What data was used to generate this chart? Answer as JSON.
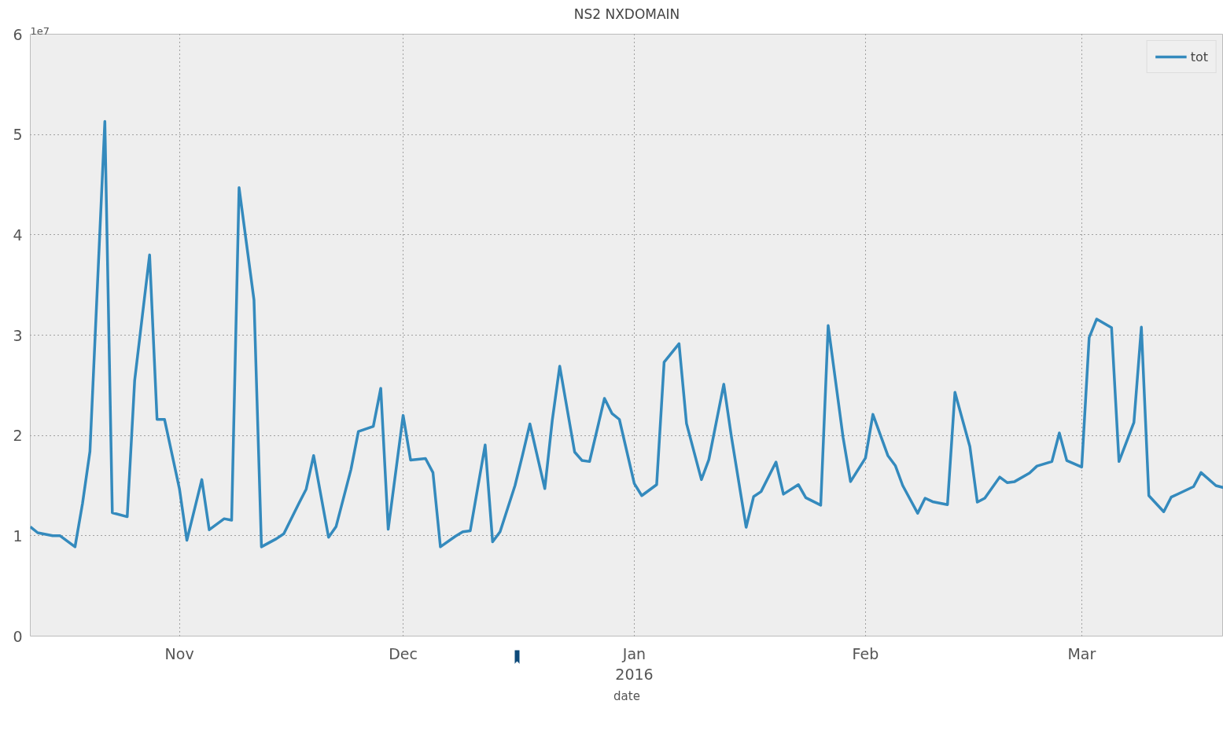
{
  "chart_data": {
    "type": "line",
    "title": "NS2 NXDOMAIN",
    "xlabel": "date",
    "annotations": [
      "1e7"
    ],
    "x": [
      "2015-10-12",
      "2015-10-13",
      "2015-10-15",
      "2015-10-16",
      "2015-10-18",
      "2015-10-19",
      "2015-10-20",
      "2015-10-22",
      "2015-10-23",
      "2015-10-25",
      "2015-10-26",
      "2015-10-28",
      "2015-10-29",
      "2015-10-30",
      "2015-11-01",
      "2015-11-02",
      "2015-11-04",
      "2015-11-05",
      "2015-11-07",
      "2015-11-08",
      "2015-11-09",
      "2015-11-11",
      "2015-11-12",
      "2015-11-14",
      "2015-11-15",
      "2015-11-17",
      "2015-11-18",
      "2015-11-19",
      "2015-11-21",
      "2015-11-22",
      "2015-11-24",
      "2015-11-25",
      "2015-11-27",
      "2015-11-28",
      "2015-11-29",
      "2015-12-01",
      "2015-12-02",
      "2015-12-04",
      "2015-12-05",
      "2015-12-06",
      "2015-12-08",
      "2015-12-09",
      "2015-12-10",
      "2015-12-12",
      "2015-12-13",
      "2015-12-14",
      "2015-12-16",
      "2015-12-17",
      "2015-12-18",
      "2015-12-20",
      "2015-12-21",
      "2015-12-22",
      "2015-12-24",
      "2015-12-25",
      "2015-12-26",
      "2015-12-28",
      "2015-12-29",
      "2015-12-30",
      "2016-01-01",
      "2016-01-02",
      "2016-01-04",
      "2016-01-05",
      "2016-01-07",
      "2016-01-08",
      "2016-01-10",
      "2016-01-11",
      "2016-01-13",
      "2016-01-14",
      "2016-01-16",
      "2016-01-17",
      "2016-01-18",
      "2016-01-20",
      "2016-01-21",
      "2016-01-23",
      "2016-01-24",
      "2016-01-26",
      "2016-01-27",
      "2016-01-29",
      "2016-01-30",
      "2016-02-01",
      "2016-02-02",
      "2016-02-04",
      "2016-02-05",
      "2016-02-06",
      "2016-02-08",
      "2016-02-09",
      "2016-02-10",
      "2016-02-12",
      "2016-02-13",
      "2016-02-15",
      "2016-02-16",
      "2016-02-17",
      "2016-02-19",
      "2016-02-20",
      "2016-02-21",
      "2016-02-23",
      "2016-02-24",
      "2016-02-26",
      "2016-02-27",
      "2016-02-28",
      "2016-03-01",
      "2016-03-02",
      "2016-03-03",
      "2016-03-05",
      "2016-03-06",
      "2016-03-08",
      "2016-03-09",
      "2016-03-10",
      "2016-03-12",
      "2016-03-13",
      "2016-03-14",
      "2016-03-16",
      "2016-03-17",
      "2016-03-19",
      "2016-03-20"
    ],
    "series": [
      {
        "name": "tot",
        "color": "#348abd",
        "values": [
          1.09,
          1.03,
          1.0,
          1.0,
          0.89,
          1.32,
          1.84,
          5.13,
          1.23,
          1.19,
          2.55,
          3.8,
          2.16,
          2.16,
          1.47,
          0.955,
          1.56,
          1.06,
          1.17,
          1.155,
          4.47,
          3.35,
          0.89,
          0.97,
          1.02,
          1.32,
          1.465,
          1.8,
          0.985,
          1.09,
          1.66,
          2.04,
          2.09,
          2.47,
          1.065,
          2.2,
          1.755,
          1.77,
          1.63,
          0.89,
          0.995,
          1.04,
          1.05,
          1.905,
          0.94,
          1.04,
          1.5,
          1.8,
          2.115,
          1.47,
          2.15,
          2.69,
          1.835,
          1.75,
          1.74,
          2.37,
          2.22,
          2.16,
          1.52,
          1.4,
          1.51,
          2.73,
          2.915,
          2.12,
          1.56,
          1.76,
          2.51,
          2.0,
          1.085,
          1.39,
          1.44,
          1.735,
          1.415,
          1.51,
          1.38,
          1.305,
          3.095,
          1.98,
          1.54,
          1.775,
          2.21,
          1.8,
          1.7,
          1.5,
          1.225,
          1.375,
          1.34,
          1.31,
          2.43,
          1.89,
          1.335,
          1.375,
          1.585,
          1.53,
          1.54,
          1.625,
          1.695,
          1.74,
          2.025,
          1.75,
          1.685,
          2.975,
          3.16,
          3.075,
          1.74,
          2.13,
          3.08,
          1.4,
          1.24,
          1.385,
          1.42,
          1.49,
          1.63,
          1.5,
          1.48
        ]
      }
    ],
    "xlim": [
      "2015-10-12",
      "2016-03-20"
    ],
    "xticks": [
      {
        "value": "2015-11-01",
        "label": "Nov"
      },
      {
        "value": "2015-12-01",
        "label": "Dec"
      },
      {
        "value": "2016-01-01",
        "label": "Jan\n2016"
      },
      {
        "value": "2016-02-01",
        "label": "Feb"
      },
      {
        "value": "2016-03-01",
        "label": "Mar"
      }
    ],
    "ylim": [
      0,
      6
    ],
    "yticks": [
      0,
      1,
      2,
      3,
      4,
      5,
      6
    ],
    "grid": true,
    "legend": "top right",
    "line_style": "solid",
    "marker": "none"
  }
}
